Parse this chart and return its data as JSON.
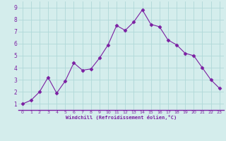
{
  "x": [
    0,
    1,
    2,
    3,
    4,
    5,
    6,
    7,
    8,
    9,
    10,
    11,
    12,
    13,
    14,
    15,
    16,
    17,
    18,
    19,
    20,
    21,
    22,
    23
  ],
  "y": [
    1.0,
    1.3,
    2.0,
    3.2,
    1.9,
    2.9,
    4.4,
    3.8,
    3.9,
    4.8,
    5.9,
    7.5,
    7.1,
    7.8,
    8.8,
    7.6,
    7.4,
    6.3,
    5.9,
    5.2,
    5.0,
    4.0,
    3.0,
    2.3
  ],
  "line_color": "#7b1fa2",
  "marker": "D",
  "marker_size": 2.5,
  "bg_color": "#d4edec",
  "grid_color": "#b0d8d8",
  "plot_bg_color": "#d4edec",
  "xlabel": "Windchill (Refroidissement éolien,°C)",
  "xlabel_color": "#7b1fa2",
  "tick_color": "#7b1fa2",
  "spine_color": "#7b1fa2",
  "ylim": [
    0.5,
    9.5
  ],
  "xlim": [
    -0.5,
    23.5
  ],
  "yticks": [
    1,
    2,
    3,
    4,
    5,
    6,
    7,
    8,
    9
  ],
  "xticks": [
    0,
    1,
    2,
    3,
    4,
    5,
    6,
    7,
    8,
    9,
    10,
    11,
    12,
    13,
    14,
    15,
    16,
    17,
    18,
    19,
    20,
    21,
    22,
    23
  ]
}
